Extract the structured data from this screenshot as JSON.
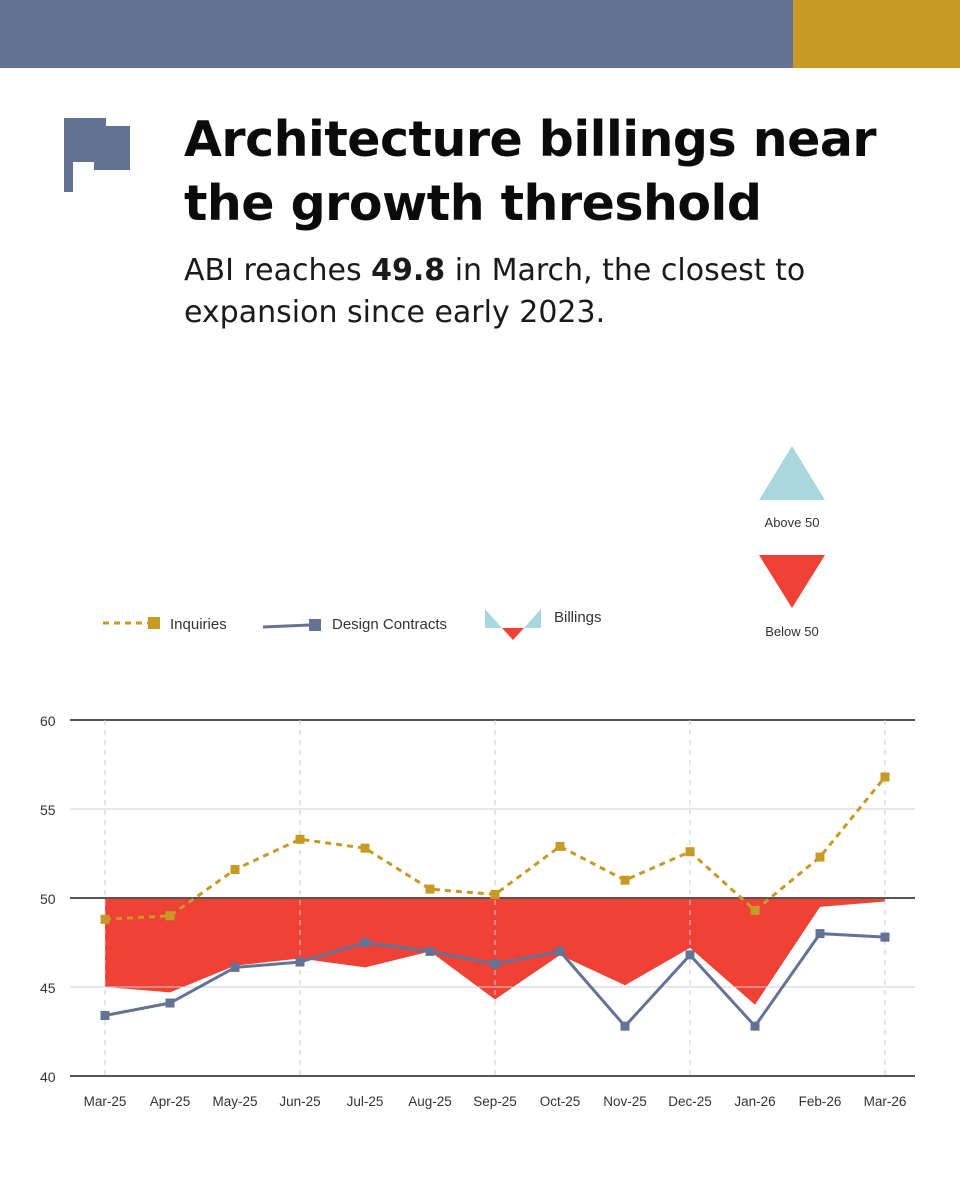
{
  "header": {
    "title": "Architecture billings near the growth threshold",
    "subtitle_pre": "ABI reaches ",
    "subtitle_value": "49.8",
    "subtitle_post": " in March, the closest to expansion since early 2023."
  },
  "colors": {
    "top_bar": "#637396",
    "accent_bar": "#c79a26",
    "inquiries": "#c79a26",
    "design_contracts": "#637396",
    "above_50": "#a9d7dc",
    "below_50": "#ef4136"
  },
  "icons": {
    "header_icon": "flag-icon"
  },
  "key": {
    "above_label": "Above 50",
    "below_label": "Below 50"
  },
  "chart_data": {
    "type": "line",
    "categories": [
      "Mar-25",
      "Apr-25",
      "May-25",
      "Jun-25",
      "Jul-25",
      "Aug-25",
      "Sep-25",
      "Oct-25",
      "Nov-25",
      "Dec-25",
      "Jan-26",
      "Feb-26",
      "Mar-26"
    ],
    "series": [
      {
        "name": "Inquiries",
        "style": "dashed-line-with-square-markers",
        "values": [
          48.8,
          49.0,
          51.6,
          53.3,
          52.8,
          50.5,
          50.2,
          52.9,
          51.0,
          52.6,
          49.3,
          52.3,
          56.8
        ]
      },
      {
        "name": "Design Contracts",
        "style": "solid-line-with-square-markers",
        "values": [
          43.4,
          44.1,
          46.1,
          46.4,
          47.5,
          47.0,
          46.3,
          47.0,
          42.8,
          46.8,
          42.8,
          48.0,
          47.8
        ]
      },
      {
        "name": "Billings",
        "style": "area-relative-to-50",
        "values": [
          45.0,
          44.7,
          46.2,
          46.6,
          46.1,
          47.0,
          44.3,
          46.8,
          45.1,
          47.2,
          44.0,
          49.5,
          49.8
        ]
      }
    ],
    "baseline": 50,
    "ylim": [
      40,
      60
    ],
    "yticks": [
      40,
      45,
      50,
      55,
      60
    ],
    "grid": "horizontal solid, vertical dashed at Mar-25, Jun-25, Sep-25, Dec-25, Mar-26",
    "legend": "top-left"
  }
}
